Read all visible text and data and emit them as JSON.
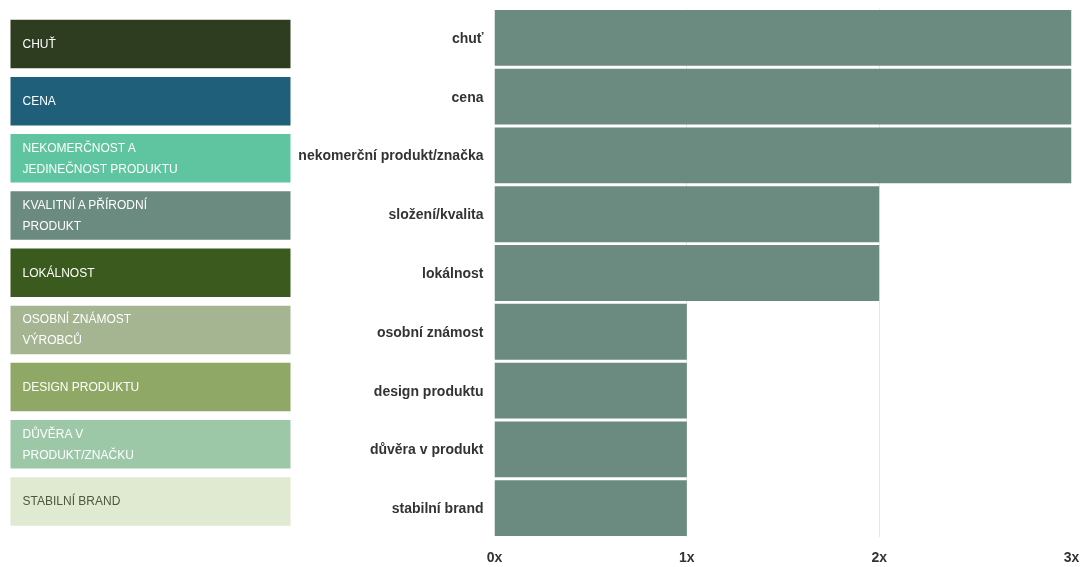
{
  "chart_data": [
    {
      "type": "other",
      "categories": [
        "CHUŤ",
        "CENA",
        "NEKOMERČNOST A JEDINEČNOST PRODUKTU",
        "KVALITNÍ A PŘÍRODNÍ PRODUKT",
        "LOKÁLNOST",
        "OSOBNÍ ZNÁMOST VÝROBCŮ",
        "DESIGN PRODUKTU",
        "DŮVĚRA V PRODUKT/ZNAČKU",
        "STABILNÍ BRAND"
      ],
      "colors": [
        "#2e3d1f",
        "#1f5f7a",
        "#5fc4a0",
        "#6b8a80",
        "#3a5a1e",
        "#a5b592",
        "#8fa865",
        "#9cc8a8",
        "#e0ead0"
      ]
    },
    {
      "type": "bar",
      "orientation": "horizontal",
      "categories": [
        "chuť",
        "cena",
        "nekomerční produkt/značka",
        "složení/kvalita",
        "lokálnost",
        "osobní známost",
        "design produktu",
        "důvěra v produkt",
        "stabilní brand"
      ],
      "values": [
        3,
        3,
        3,
        2,
        2,
        1,
        1,
        1,
        1
      ],
      "color": "#6b8a80",
      "xlim": [
        0,
        3
      ],
      "xticks": [
        {
          "value": 0,
          "label": "0x"
        },
        {
          "value": 1,
          "label": "1x"
        },
        {
          "value": 2,
          "label": "2x"
        },
        {
          "value": 3,
          "label": "3x"
        }
      ],
      "grid": "x"
    }
  ]
}
